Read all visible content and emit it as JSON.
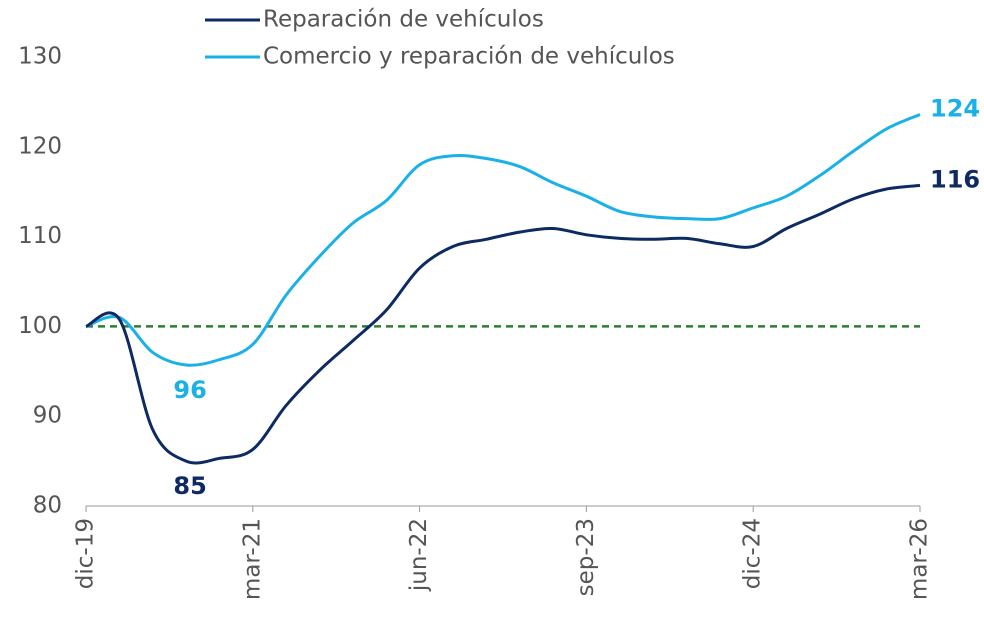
{
  "chart_data": {
    "type": "line",
    "categories": [
      "dic-19",
      null,
      null,
      null,
      null,
      "mar-21",
      null,
      null,
      null,
      null,
      "jun-22",
      null,
      null,
      null,
      null,
      "sep-23",
      null,
      null,
      null,
      null,
      "dic-24",
      null,
      null,
      null,
      null,
      "mar-26"
    ],
    "series": [
      {
        "name": "Reparación de vehículos",
        "color": "#0d2a63",
        "values": [
          100,
          100.8,
          88.5,
          85,
          85.3,
          86.3,
          91.2,
          95.1,
          98.4,
          101.8,
          106.5,
          108.9,
          109.7,
          110.5,
          110.9,
          110.2,
          109.8,
          109.7,
          109.8,
          109.2,
          108.9,
          110.9,
          112.5,
          114.2,
          115.3,
          115.7
        ],
        "value_labels": [
          null,
          null,
          null,
          "85",
          null,
          null,
          null,
          null,
          null,
          null,
          null,
          null,
          null,
          null,
          null,
          null,
          null,
          null,
          null,
          null,
          null,
          null,
          null,
          null,
          null,
          "116"
        ]
      },
      {
        "name": "Comercio y reparación de vehículos",
        "color": "#1ab0e8",
        "values": [
          100,
          101,
          97.1,
          95.7,
          96.3,
          98,
          103.5,
          107.8,
          111.5,
          114,
          118,
          119,
          118.7,
          117.8,
          116,
          114.5,
          112.8,
          112.2,
          112,
          112,
          113.2,
          114.5,
          116.8,
          119.5,
          122,
          123.6
        ],
        "value_labels": [
          null,
          null,
          null,
          "96",
          null,
          null,
          null,
          null,
          null,
          null,
          null,
          null,
          null,
          null,
          null,
          null,
          null,
          null,
          null,
          null,
          null,
          null,
          null,
          null,
          null,
          "124"
        ]
      }
    ],
    "reference_line": {
      "value": 100,
      "color": "#2e7d32"
    },
    "ylim": [
      80,
      130
    ],
    "yticks": [
      80,
      90,
      100,
      110,
      120,
      130
    ],
    "grid": false,
    "legend": "top"
  }
}
